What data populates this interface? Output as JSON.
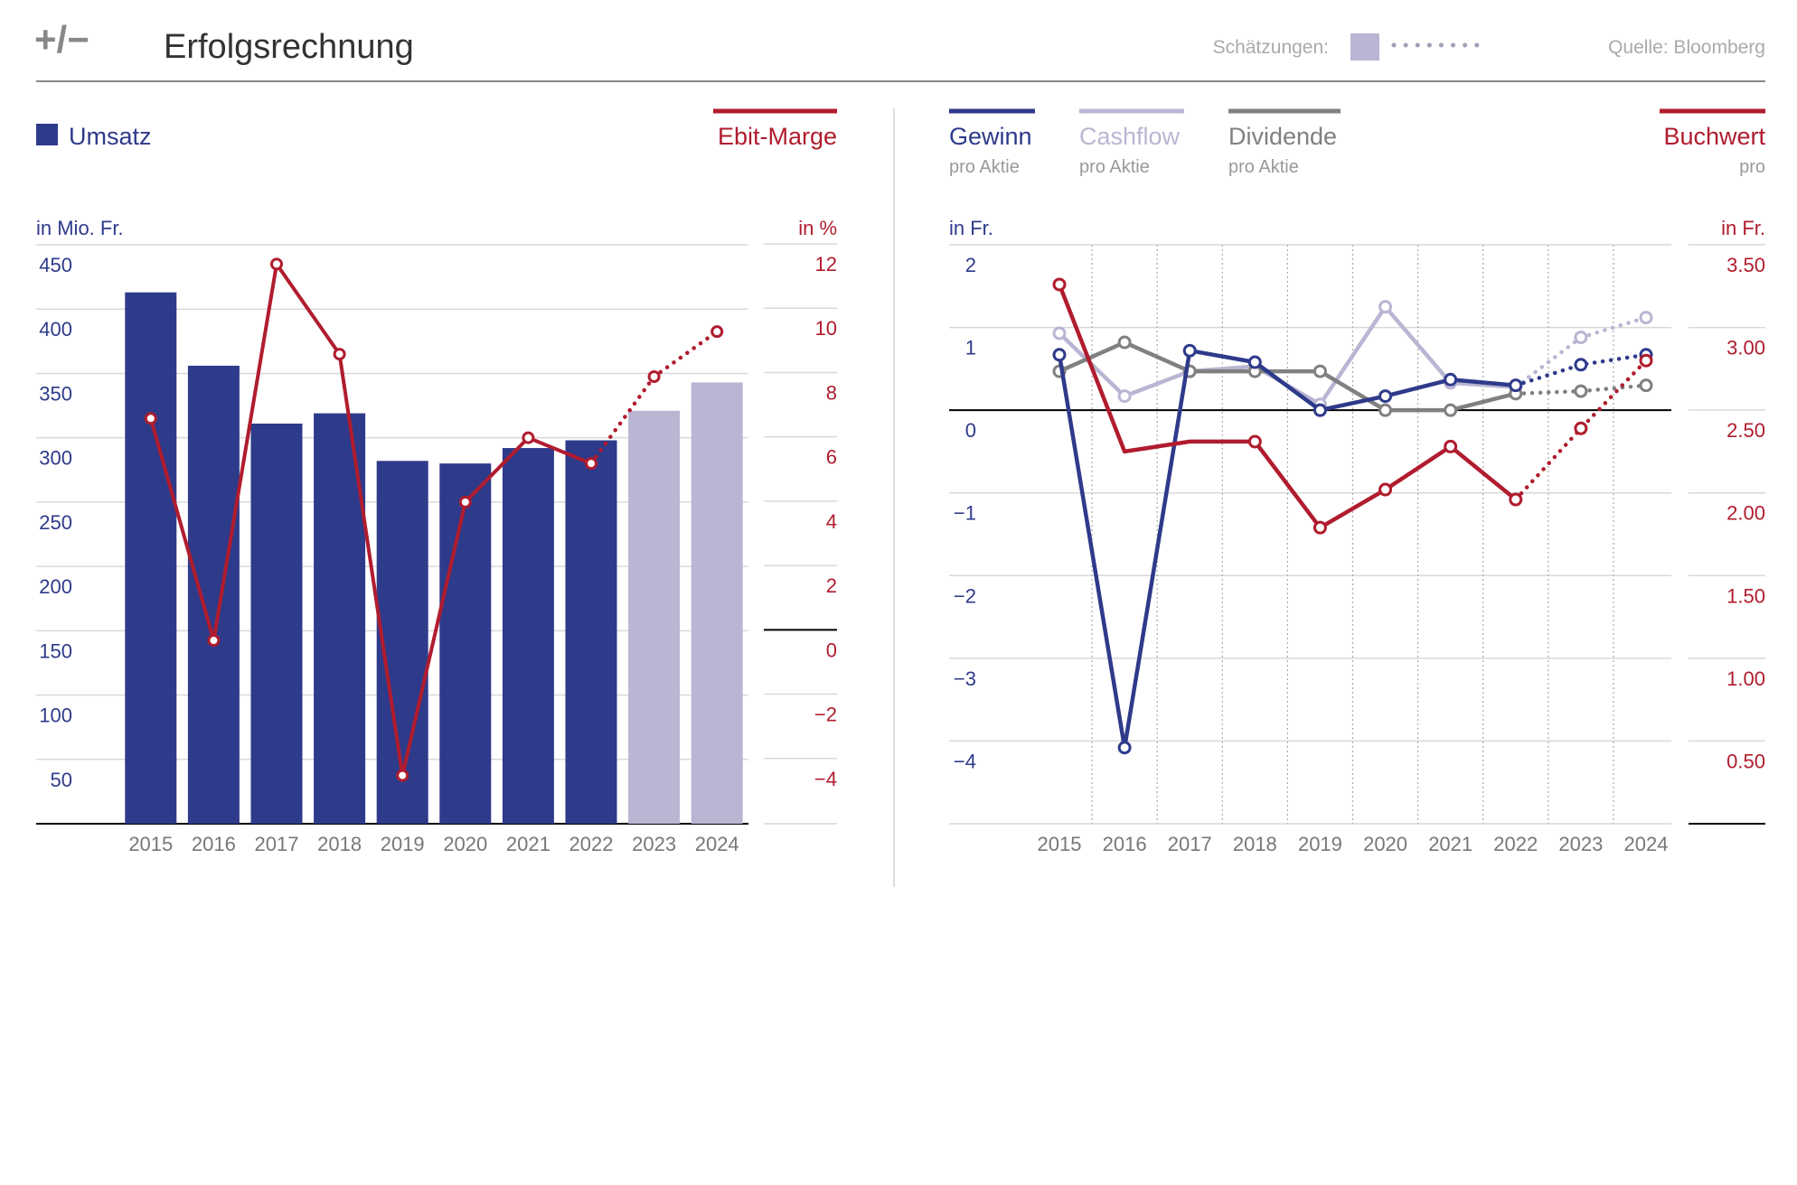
{
  "header": {
    "logo": "+/−",
    "title": "Erfolgsrechnung",
    "estimates_label": "Schätzungen:",
    "source": "Quelle: Bloomberg"
  },
  "colors": {
    "navy": "#2e3a8a",
    "light_purple": "#b9b6d3",
    "red": "#b01c2e",
    "gray": "#808080",
    "text_gray": "#888888"
  },
  "chart_data": [
    {
      "type": "bar",
      "categories": [
        "2015",
        "2016",
        "2017",
        "2018",
        "2019",
        "2020",
        "2021",
        "2022",
        "2023",
        "2024"
      ],
      "estimate_from": "2023",
      "series": [
        {
          "name": "Umsatz",
          "axis": "left",
          "type": "bar",
          "values": [
            413,
            356,
            311,
            319,
            282,
            280,
            292,
            298,
            321,
            343
          ]
        },
        {
          "name": "Ebit-Marge",
          "axis": "right",
          "type": "line",
          "values": [
            6.6,
            -0.3,
            11.4,
            8.6,
            -4.5,
            4.0,
            6.0,
            5.2,
            7.9,
            9.3
          ]
        }
      ],
      "left_axis": {
        "label": "in Mio. Fr.",
        "ylim": [
          0,
          450
        ],
        "ticks": [
          "450",
          "400",
          "350",
          "300",
          "250",
          "200",
          "150",
          "100",
          "50"
        ]
      },
      "right_axis": {
        "label": "in %",
        "ylim": [
          -6,
          12
        ],
        "ticks": [
          "12",
          "10",
          "8",
          "6",
          "4",
          "2",
          "0",
          "−2",
          "−4"
        ]
      }
    },
    {
      "type": "line",
      "categories": [
        "2015",
        "2016",
        "2017",
        "2018",
        "2019",
        "2020",
        "2021",
        "2022",
        "2023",
        "2024"
      ],
      "estimate_from": "2023",
      "series": [
        {
          "name": "Gewinn",
          "sublabel": "pro Aktie",
          "axis": "left",
          "values": [
            0.67,
            -4.08,
            0.72,
            0.58,
            0.0,
            0.17,
            0.37,
            0.3,
            0.55,
            0.67
          ]
        },
        {
          "name": "Cashflow",
          "sublabel": "pro Aktie",
          "axis": "left",
          "values": [
            0.93,
            0.17,
            0.47,
            0.53,
            0.07,
            1.25,
            0.33,
            0.28,
            0.88,
            1.12
          ]
        },
        {
          "name": "Dividende",
          "sublabel": "pro Aktie",
          "axis": "left",
          "values": [
            0.47,
            0.82,
            0.47,
            0.47,
            0.47,
            0.0,
            0.0,
            0.2,
            0.23,
            0.3
          ]
        },
        {
          "name": "Buchwert",
          "sublabel": "pro",
          "axis": "right",
          "values": [
            3.26,
            2.25,
            2.31,
            2.31,
            1.79,
            2.02,
            2.28,
            1.96,
            2.39,
            2.8
          ]
        }
      ],
      "left_axis": {
        "label": "in Fr.",
        "ylim": [
          -5,
          2
        ],
        "ticks": [
          "2",
          "1",
          "0",
          "−1",
          "−2",
          "−3",
          "−4"
        ]
      },
      "right_axis": {
        "label": "in Fr.",
        "ylim": [
          0,
          3.5
        ],
        "ticks": [
          "3.50",
          "3.00",
          "2.50",
          "2.00",
          "1.50",
          "1.00",
          "0.50"
        ]
      }
    }
  ]
}
